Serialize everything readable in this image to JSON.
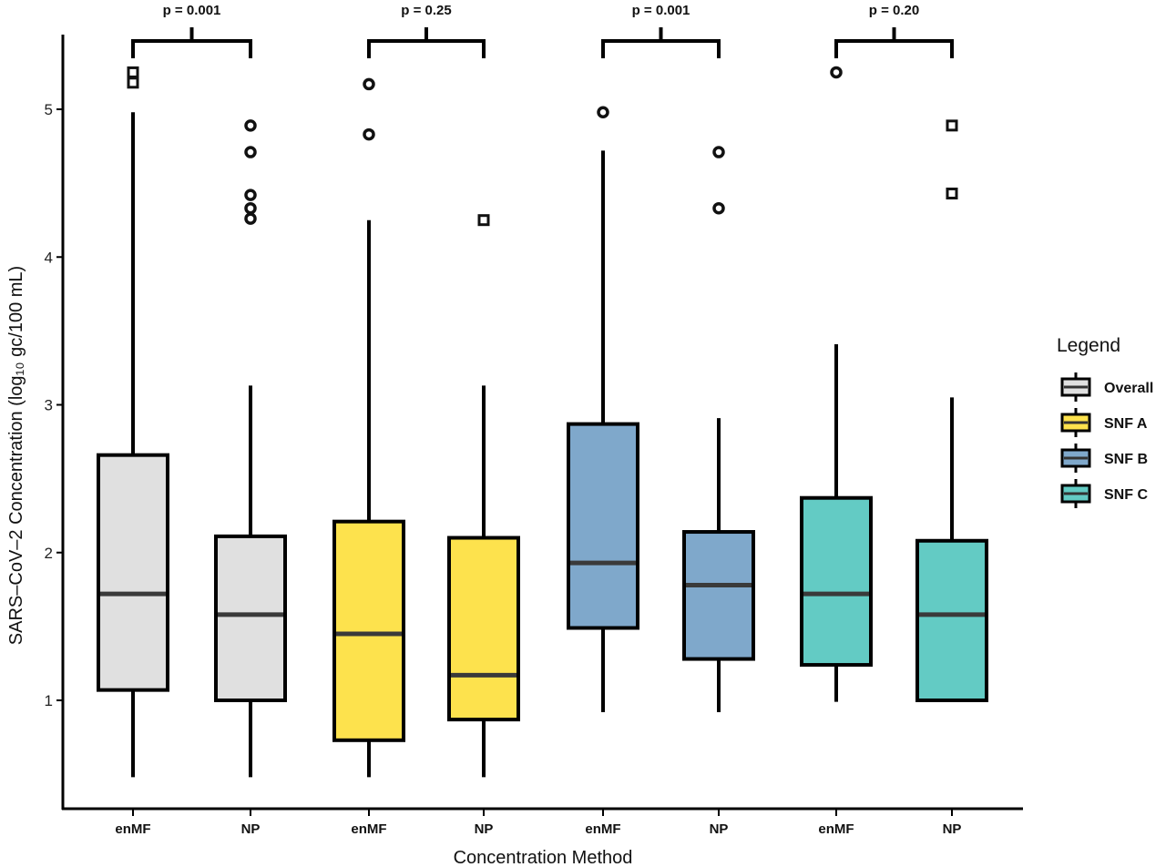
{
  "chart_data": {
    "type": "box",
    "xlabel": "Concentration Method",
    "ylabel": "SARS–CoV–2 Concentration (log₁₀ gc/100 mL)",
    "ylim": [
      0.3,
      5.55
    ],
    "yticks": [
      1,
      2,
      3,
      4,
      5
    ],
    "grid": false,
    "legend": {
      "title": "Legend",
      "position": "right",
      "entries": [
        {
          "label": "Overall",
          "color": "#e0e0e0"
        },
        {
          "label": "SNF A",
          "color": "#fde24d"
        },
        {
          "label": "SNF B",
          "color": "#7fa8cb"
        },
        {
          "label": "SNF C",
          "color": "#63cbc4"
        }
      ]
    },
    "groups": [
      {
        "name": "Overall",
        "p_value": "p = 0.001",
        "boxes": [
          {
            "category": "enMF",
            "min": 0.48,
            "q1": 1.07,
            "median": 1.72,
            "q3": 2.66,
            "max": 4.98,
            "outliers": [
              5.18,
              5.25
            ],
            "outlier_shape": "square"
          },
          {
            "category": "NP",
            "min": 0.48,
            "q1": 1.0,
            "median": 1.58,
            "q3": 2.11,
            "max": 3.13,
            "outliers": [
              4.26,
              4.33,
              4.42,
              4.71,
              4.89
            ],
            "outlier_shape": "circle"
          }
        ]
      },
      {
        "name": "SNF A",
        "p_value": "p = 0.25",
        "boxes": [
          {
            "category": "enMF",
            "min": 0.48,
            "q1": 0.73,
            "median": 1.45,
            "q3": 2.21,
            "max": 4.25,
            "outliers": [
              4.83,
              5.17
            ],
            "outlier_shape": "circle"
          },
          {
            "category": "NP",
            "min": 0.48,
            "q1": 0.87,
            "median": 1.17,
            "q3": 2.1,
            "max": 3.13,
            "outliers": [
              4.25
            ],
            "outlier_shape": "square"
          }
        ]
      },
      {
        "name": "SNF B",
        "p_value": "p = 0.001",
        "boxes": [
          {
            "category": "enMF",
            "min": 0.92,
            "q1": 1.49,
            "median": 1.93,
            "q3": 2.87,
            "max": 4.72,
            "outliers": [
              4.98
            ],
            "outlier_shape": "circle"
          },
          {
            "category": "NP",
            "min": 0.92,
            "q1": 1.28,
            "median": 1.78,
            "q3": 2.14,
            "max": 2.91,
            "outliers": [
              4.33,
              4.71
            ],
            "outlier_shape": "circle"
          }
        ]
      },
      {
        "name": "SNF C",
        "p_value": "p = 0.20",
        "boxes": [
          {
            "category": "enMF",
            "min": 0.99,
            "q1": 1.24,
            "median": 1.72,
            "q3": 2.37,
            "max": 3.41,
            "outliers": [
              5.25
            ],
            "outlier_shape": "circle"
          },
          {
            "category": "NP",
            "min": 1.0,
            "q1": 1.0,
            "median": 1.58,
            "q3": 2.08,
            "max": 3.05,
            "outliers": [
              4.43,
              4.89
            ],
            "outlier_shape": "square"
          }
        ]
      }
    ]
  }
}
